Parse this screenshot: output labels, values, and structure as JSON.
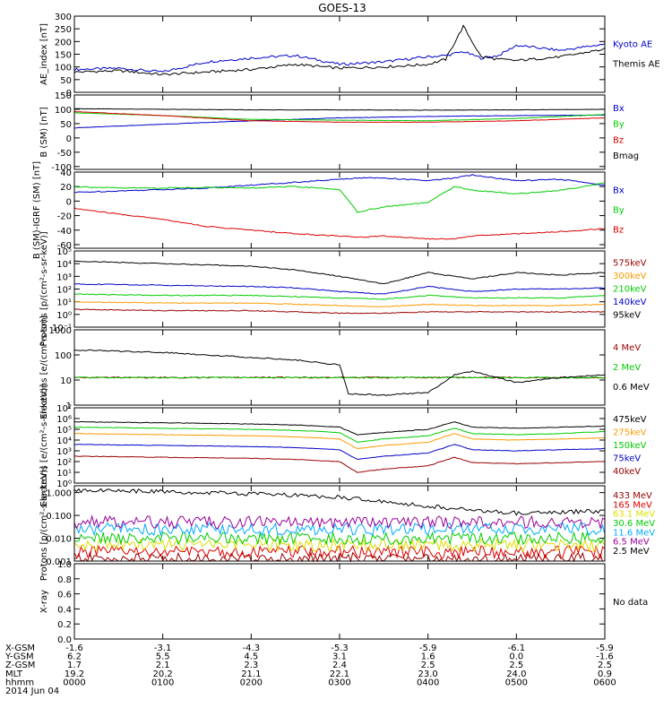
{
  "title": "GOES-13",
  "colors": {
    "black": "#000000",
    "blue": "#0000cc",
    "green": "#00cc00",
    "red": "#dd0000",
    "dred": "#990000",
    "orange": "#ff9900",
    "cyan": "#00aaff",
    "yellow": "#dddd00",
    "purple": "#990099"
  },
  "chart_data": [
    {
      "type": "line",
      "id": "ae",
      "ylabel": "AE_index [nT]",
      "ylim": [
        0,
        300
      ],
      "ticks": [
        "0",
        "50",
        "100",
        "150",
        "200",
        "250",
        "300"
      ],
      "tick_values": [
        0,
        50,
        100,
        150,
        200,
        250,
        300
      ],
      "log": false,
      "x": [
        0,
        0.5,
        1,
        1.5,
        2,
        2.5,
        3,
        3.5,
        4,
        4.2,
        4.4,
        4.6,
        4.8,
        5,
        5.5,
        6
      ],
      "series": [
        {
          "name": "Kyoto AE",
          "color": "blue",
          "values": [
            90,
            95,
            80,
            120,
            135,
            145,
            110,
            120,
            140,
            145,
            160,
            135,
            145,
            185,
            165,
            190
          ]
        },
        {
          "name": "Themis AE",
          "color": "black",
          "values": [
            80,
            85,
            70,
            80,
            90,
            110,
            95,
            100,
            110,
            130,
            260,
            140,
            130,
            125,
            140,
            170
          ]
        }
      ]
    },
    {
      "type": "line",
      "id": "bsm",
      "ylabel": "B (SM) [nT]",
      "ylim": [
        -110,
        150
      ],
      "ticks": [
        "-100",
        "-50",
        "0",
        "50",
        "100",
        "150"
      ],
      "tick_values": [
        -100,
        -50,
        0,
        50,
        100,
        150
      ],
      "log": false,
      "x": [
        0,
        1,
        2,
        3,
        4,
        5,
        6
      ],
      "series": [
        {
          "name": "Bx",
          "color": "blue",
          "values": [
            35,
            48,
            60,
            70,
            75,
            78,
            80
          ]
        },
        {
          "name": "By",
          "color": "green",
          "values": [
            88,
            78,
            65,
            62,
            60,
            68,
            82
          ]
        },
        {
          "name": "Bz",
          "color": "red",
          "values": [
            92,
            78,
            60,
            55,
            55,
            60,
            70
          ]
        },
        {
          "name": "Bmag",
          "color": "black",
          "values": [
            102,
            100,
            98,
            98,
            97,
            98,
            100
          ]
        }
      ]
    },
    {
      "type": "line",
      "id": "bigrf",
      "ylabel": "B (SM)-IGRF (SM) [nT]",
      "ylim": [
        -65,
        40
      ],
      "ticks": [
        "-60",
        "-40",
        "-20",
        "0",
        "20",
        "40"
      ],
      "tick_values": [
        -60,
        -40,
        -20,
        0,
        20,
        40
      ],
      "log": false,
      "x": [
        0,
        0.5,
        1,
        1.5,
        2,
        2.5,
        3,
        3.2,
        3.5,
        4,
        4.3,
        4.5,
        5,
        5.5,
        6
      ],
      "series": [
        {
          "name": "Bx",
          "color": "blue",
          "values": [
            12,
            14,
            16,
            18,
            22,
            26,
            30,
            32,
            32,
            28,
            32,
            36,
            28,
            30,
            22
          ]
        },
        {
          "name": "By",
          "color": "green",
          "values": [
            20,
            18,
            18,
            19,
            18,
            20,
            16,
            -15,
            -8,
            -2,
            20,
            15,
            10,
            15,
            25
          ]
        },
        {
          "name": "Bz",
          "color": "red",
          "values": [
            -10,
            -18,
            -25,
            -35,
            -40,
            -45,
            -48,
            -50,
            -48,
            -52,
            -52,
            -48,
            -45,
            -42,
            -38
          ]
        }
      ]
    },
    {
      "type": "line",
      "id": "protons1",
      "ylabel": "Protons [p/(cm²-s-sr-keV)]",
      "ylim": [
        -1,
        5
      ],
      "log": true,
      "ticks": [
        "10⁻¹",
        "10⁰",
        "10¹",
        "10²",
        "10³",
        "10⁴",
        "10⁵"
      ],
      "tick_values": [
        -1,
        0,
        1,
        2,
        3,
        4,
        5
      ],
      "x": [
        0,
        1,
        2,
        2.5,
        3,
        3.5,
        4,
        4.5,
        5,
        5.5,
        6
      ],
      "series": [
        {
          "name": "575keV",
          "color": "dred",
          "values": [
            0.4,
            0.3,
            0.3,
            0.2,
            0.1,
            0.1,
            0.2,
            0.2,
            0.2,
            0.2,
            0.2
          ]
        },
        {
          "name": "300keV",
          "color": "orange",
          "values": [
            1.0,
            0.9,
            0.9,
            0.8,
            0.7,
            0.6,
            0.8,
            0.7,
            0.7,
            0.7,
            0.8
          ]
        },
        {
          "name": "210keV",
          "color": "green",
          "values": [
            1.6,
            1.5,
            1.5,
            1.4,
            1.3,
            1.2,
            1.5,
            1.3,
            1.3,
            1.3,
            1.5
          ]
        },
        {
          "name": "140keV",
          "color": "blue",
          "values": [
            2.4,
            2.3,
            2.2,
            2.1,
            1.8,
            1.6,
            2.2,
            1.8,
            2.0,
            2.0,
            2.1
          ]
        },
        {
          "name": "95keV",
          "color": "black",
          "values": [
            4.2,
            4.0,
            3.8,
            3.5,
            3.0,
            2.4,
            3.3,
            2.8,
            3.3,
            3.1,
            3.3
          ]
        }
      ]
    },
    {
      "type": "line",
      "id": "electrons1",
      "ylabel": "Electrons [e/(cm²-s-sr)]",
      "ylim": [
        0,
        3
      ],
      "log": true,
      "ticks": [
        "1",
        "10",
        "100",
        "1000"
      ],
      "tick_values": [
        0,
        1,
        2,
        3
      ],
      "x": [
        0,
        1,
        2,
        2.5,
        3,
        3.1,
        3.5,
        4,
        4.3,
        4.5,
        5,
        5.5,
        6
      ],
      "series": [
        {
          "name": "4 MeV",
          "color": "dred",
          "values": [
            1.1,
            1.1,
            1.1,
            1.1,
            1.1,
            1.1,
            1.1,
            1.1,
            1.1,
            1.1,
            1.1,
            1.1,
            1.1
          ]
        },
        {
          "name": "2 MeV",
          "color": "green",
          "values": [
            1.1,
            1.1,
            1.1,
            1.1,
            1.1,
            1.1,
            1.1,
            1.1,
            1.1,
            1.1,
            1.1,
            1.1,
            1.1
          ]
        },
        {
          "name": "0.6 MeV",
          "color": "black",
          "values": [
            2.2,
            2.1,
            1.9,
            1.8,
            1.6,
            0.45,
            0.4,
            0.5,
            1.2,
            1.35,
            0.9,
            1.1,
            1.2
          ]
        }
      ]
    },
    {
      "type": "line",
      "id": "electrons2",
      "ylabel": "Electrons [e/(cm²-s-sr-keV)]",
      "ylim": [
        0,
        7
      ],
      "log": true,
      "ticks": [
        "10⁰",
        "10¹",
        "10²",
        "10³",
        "10⁴",
        "10⁵",
        "10⁶",
        "10⁷"
      ],
      "tick_values": [
        0,
        1,
        2,
        3,
        4,
        5,
        6,
        7
      ],
      "x": [
        0,
        1,
        2,
        2.5,
        3,
        3.2,
        3.5,
        4,
        4.3,
        4.5,
        5,
        5.5,
        6
      ],
      "series": [
        {
          "name": "475keV",
          "color": "black",
          "values": [
            5.7,
            5.6,
            5.5,
            5.4,
            5.2,
            4.5,
            4.7,
            5.0,
            5.7,
            5.2,
            5.1,
            5.2,
            5.3
          ]
        },
        {
          "name": "275keV",
          "color": "orange",
          "values": [
            4.6,
            4.5,
            4.4,
            4.3,
            4.1,
            3.2,
            3.5,
            3.8,
            4.6,
            4.1,
            4.0,
            4.1,
            4.2
          ]
        },
        {
          "name": "150keV",
          "color": "green",
          "values": [
            5.2,
            5.1,
            5.0,
            4.9,
            4.7,
            3.8,
            4.1,
            4.4,
            5.1,
            4.6,
            4.5,
            4.6,
            4.8
          ]
        },
        {
          "name": "75keV",
          "color": "blue",
          "values": [
            3.6,
            3.5,
            3.4,
            3.3,
            3.1,
            2.2,
            2.5,
            2.8,
            3.6,
            3.1,
            3.0,
            3.1,
            3.2
          ]
        },
        {
          "name": "40keV",
          "color": "dred",
          "values": [
            2.5,
            2.4,
            2.3,
            2.2,
            2.0,
            1.0,
            1.3,
            1.6,
            2.4,
            1.9,
            1.8,
            1.9,
            2.0
          ]
        }
      ]
    },
    {
      "type": "line",
      "id": "protons2",
      "ylabel": "Protons [p/(cm²-s-sr-keV)]",
      "ylim": [
        -3,
        0.3
      ],
      "log": true,
      "ticks": [
        "0.001",
        "0.010",
        "0.100",
        "1.000"
      ],
      "tick_values": [
        -3,
        -2,
        -1,
        0
      ],
      "x": [
        0,
        1,
        2,
        3,
        4,
        5,
        6
      ],
      "series": [
        {
          "name": "433 MeV",
          "color": "dred",
          "values": [
            -2.9,
            -2.9,
            -2.9,
            -2.9,
            -2.9,
            -2.9,
            -2.9
          ]
        },
        {
          "name": "165 MeV",
          "color": "red",
          "values": [
            -2.6,
            -2.6,
            -2.6,
            -2.6,
            -2.6,
            -2.6,
            -2.6
          ]
        },
        {
          "name": "63.1 MeV",
          "color": "yellow",
          "values": [
            -2.3,
            -2.3,
            -2.3,
            -2.3,
            -2.3,
            -2.3,
            -2.3
          ]
        },
        {
          "name": "30.6 MeV",
          "color": "green",
          "values": [
            -2.0,
            -2.0,
            -2.0,
            -2.0,
            -2.0,
            -2.0,
            -2.0
          ]
        },
        {
          "name": "11.6 MeV",
          "color": "cyan",
          "values": [
            -1.6,
            -1.6,
            -1.6,
            -1.6,
            -1.6,
            -1.6,
            -1.6
          ]
        },
        {
          "name": "6.5 MeV",
          "color": "purple",
          "values": [
            -1.3,
            -1.3,
            -1.3,
            -1.3,
            -1.3,
            -1.3,
            -1.3
          ]
        },
        {
          "name": "2.5 MeV",
          "color": "black",
          "values": [
            0.1,
            0.05,
            -0.05,
            -0.2,
            -0.6,
            -0.9,
            -0.8
          ]
        }
      ]
    },
    {
      "type": "line",
      "id": "xray",
      "ylabel": "X-ray",
      "ylim": [
        0,
        1
      ],
      "log": false,
      "ticks": [
        "0.0",
        "0.2",
        "0.4",
        "0.6",
        "0.8",
        "1.0"
      ],
      "tick_values": [
        0,
        0.2,
        0.4,
        0.6,
        0.8,
        1.0
      ],
      "x": [],
      "series": [],
      "note": "No data"
    }
  ],
  "ephemeris": {
    "labels": [
      "X-GSM",
      "Y-GSM",
      "Z-GSM",
      "MLT",
      "hhmm"
    ],
    "date": "2014 Jun 04",
    "columns": [
      [
        "-1.6",
        "6.2",
        "1.7",
        "19.2",
        "0000"
      ],
      [
        "-3.1",
        "5.5",
        "2.1",
        "20.2",
        "0100"
      ],
      [
        "-4.3",
        "4.5",
        "2.3",
        "21.1",
        "0200"
      ],
      [
        "-5.3",
        "3.1",
        "2.4",
        "22.1",
        "0300"
      ],
      [
        "-5.9",
        "1.6",
        "2.5",
        "23.0",
        "0400"
      ],
      [
        "-6.1",
        "0.0",
        "2.5",
        "24.0",
        "0500"
      ],
      [
        "-5.9",
        "-1.6",
        "2.5",
        "0.9",
        "0600"
      ]
    ]
  }
}
